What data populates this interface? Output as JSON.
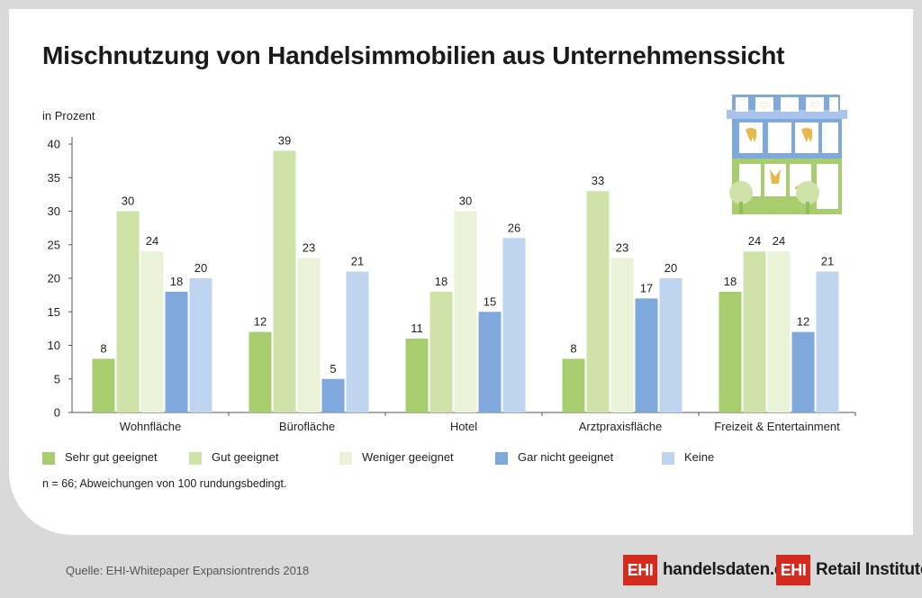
{
  "title": "Mischnutzung von Handelsimmobilien aus Unternehmenssicht",
  "unit_label": "in Prozent",
  "note": "n = 66; Abweichungen von 100 rundungsbedingt.",
  "source": "Quelle: EHI-Whitepaper Expansiontrends 2018",
  "logos": {
    "handelsdaten_box": "EHI",
    "handelsdaten_text": "handelsdaten.de",
    "retail_box": "EHI",
    "retail_text": "Retail Institute",
    "retail_mark": "®"
  },
  "colors": {
    "Sehr gut geeignet": "#a8cd6e",
    "Gut geeignet": "#cfe2a7",
    "Weniger geeignet": "#eaf2d8",
    "Gar nicht geeignet": "#7fa9dd",
    "Keine": "#bed4ef"
  },
  "illustration": "shop-building-icon",
  "chart_data": {
    "type": "bar",
    "categories": [
      "Wohnfläche",
      "Bürofläche",
      "Hotel",
      "Arztpraxisfläche",
      "Freizeit & Entertainment"
    ],
    "series": [
      {
        "name": "Sehr gut geeignet",
        "values": [
          8,
          12,
          11,
          8,
          18
        ]
      },
      {
        "name": "Gut geeignet",
        "values": [
          30,
          39,
          18,
          33,
          24
        ]
      },
      {
        "name": "Weniger geeignet",
        "values": [
          24,
          23,
          30,
          23,
          24
        ]
      },
      {
        "name": "Gar nicht geeignet",
        "values": [
          18,
          5,
          15,
          17,
          12
        ]
      },
      {
        "name": "Keine",
        "values": [
          20,
          21,
          26,
          20,
          21
        ]
      }
    ],
    "ylim": [
      0,
      40
    ],
    "yticks": [
      0,
      5,
      10,
      15,
      20,
      25,
      30,
      35,
      40
    ],
    "ylabel": "in Prozent",
    "grid": false,
    "legend": "bottom",
    "data_labels": true
  }
}
